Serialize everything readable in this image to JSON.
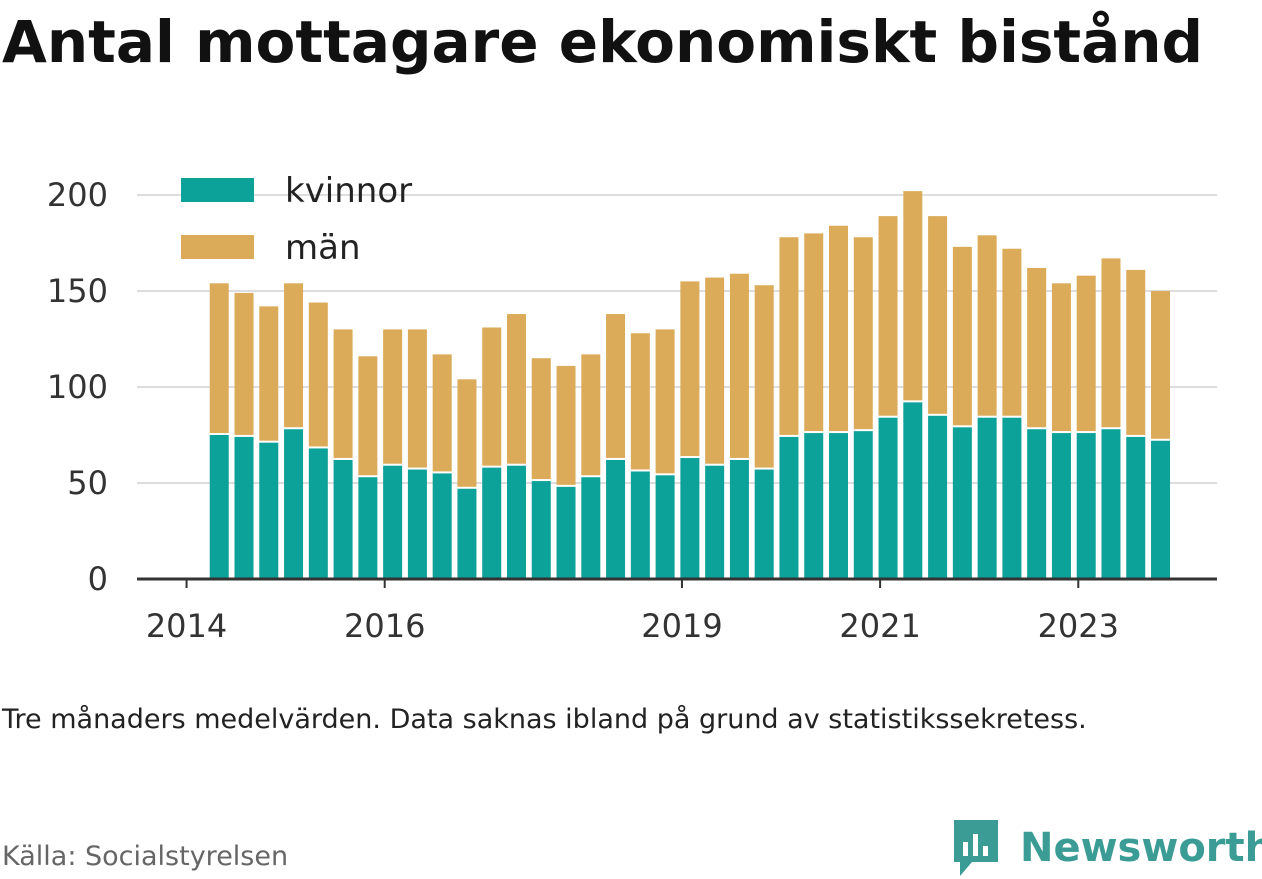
{
  "title": "Antal mottagare ekonomiskt bistånd",
  "note": "Tre månaders medelvärden. Data saknas ibland på grund av statistikssekretess.",
  "source": "Källa: Socialstyrelsen",
  "brand": {
    "name": "Newsworthy",
    "icon": "newsworthy-logo-icon",
    "color": "#3a9c94"
  },
  "colors": {
    "kvinnor": "#0ca199",
    "man": "#dbab59",
    "grid": "#dddddd",
    "axis": "#333333"
  },
  "chart_data": {
    "type": "bar",
    "stacked": true,
    "x_ticks": [
      {
        "label": "2014",
        "x": 2014.0
      },
      {
        "label": "2016",
        "x": 2016.0
      },
      {
        "label": "2019",
        "x": 2019.0
      },
      {
        "label": "2021",
        "x": 2021.0
      },
      {
        "label": "2023",
        "x": 2023.0
      }
    ],
    "y_ticks": [
      0,
      50,
      100,
      150,
      200
    ],
    "ylim": [
      0,
      200
    ],
    "xlim": [
      2013.5,
      2024.4
    ],
    "grid": true,
    "legend_position": "top-left",
    "x": [
      2014.33,
      2014.58,
      2014.83,
      2015.08,
      2015.33,
      2015.58,
      2015.83,
      2016.08,
      2016.33,
      2016.58,
      2016.83,
      2017.08,
      2017.33,
      2017.58,
      2017.83,
      2018.08,
      2018.33,
      2018.58,
      2018.83,
      2019.08,
      2019.33,
      2019.58,
      2019.83,
      2020.08,
      2020.33,
      2020.58,
      2020.83,
      2021.08,
      2021.33,
      2021.58,
      2021.83,
      2022.08,
      2022.33,
      2022.58,
      2022.83,
      2023.08,
      2023.33,
      2023.58,
      2023.83
    ],
    "series": [
      {
        "name": "kvinnor",
        "values": [
          75,
          74,
          71,
          78,
          68,
          62,
          53,
          59,
          57,
          55,
          47,
          58,
          59,
          51,
          48,
          53,
          62,
          56,
          54,
          63,
          59,
          62,
          57,
          74,
          76,
          76,
          77,
          84,
          92,
          85,
          79,
          84,
          84,
          78,
          76,
          76,
          78,
          74,
          72
        ]
      },
      {
        "name": "män",
        "values": [
          79,
          75,
          71,
          76,
          76,
          68,
          63,
          71,
          73,
          62,
          57,
          73,
          79,
          64,
          63,
          64,
          76,
          72,
          76,
          92,
          98,
          97,
          96,
          104,
          104,
          108,
          101,
          105,
          110,
          104,
          94,
          95,
          88,
          84,
          78,
          82,
          89,
          87,
          78
        ]
      }
    ]
  }
}
